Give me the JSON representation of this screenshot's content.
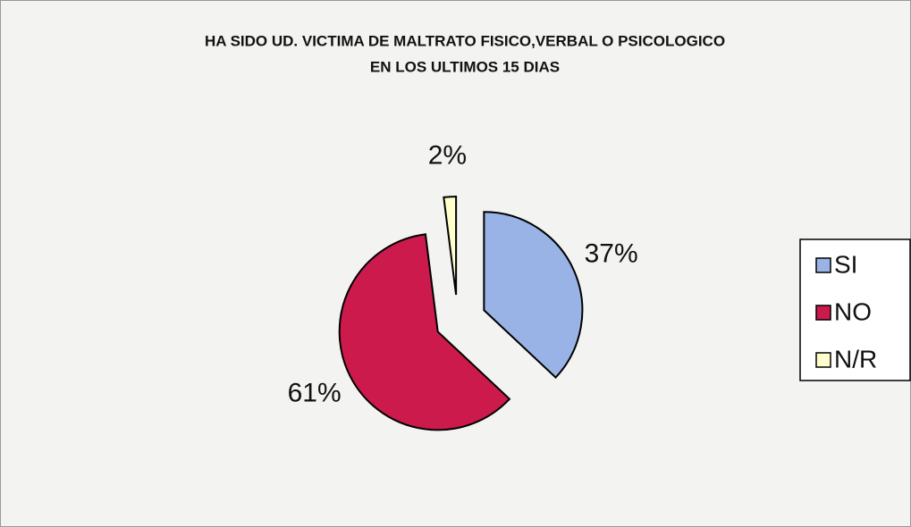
{
  "chart_data": {
    "type": "pie",
    "title": [
      "HA SIDO UD. VICTIMA DE MALTRATO FISICO,VERBAL O PSICOLOGICO",
      "EN LOS ULTIMOS 15 DIAS"
    ],
    "categories": [
      "SI",
      "NO",
      "N/R"
    ],
    "values": [
      37,
      61,
      2
    ],
    "value_labels": [
      "37%",
      "61%",
      "2%"
    ],
    "colors": [
      "#99b3e6",
      "#cc1a4d",
      "#ffffcc"
    ],
    "legend": "right"
  }
}
